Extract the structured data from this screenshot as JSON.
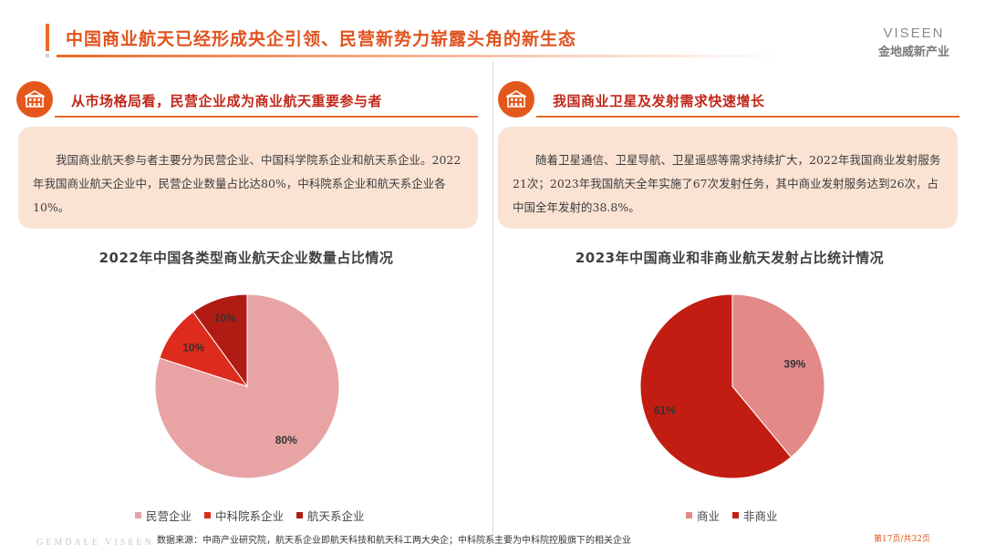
{
  "header": {
    "title": "中国商业航天已经形成央企引领、民营新势力崭露头角的新生态",
    "logo_top": "VISEEN",
    "logo_bottom": "金地威新产业"
  },
  "left": {
    "heading": "从市场格局看，民营企业成为商业航天重要参与者",
    "body": "我国商业航天参与者主要分为民营企业、中国科学院系企业和航天系企业。2022年我国商业航天企业中，民营企业数量占比达80%，中科院系企业和航天系企业各10%。"
  },
  "right": {
    "heading": "我国商业卫星及发射需求快速增长",
    "body": "随着卫星通信、卫星导航、卫星遥感等需求持续扩大，2022年我国商业发射服务21次；2023年我国航天全年实施了67次发射任务，其中商业发射服务达到26次，占中国全年发射的38.8%。"
  },
  "chart_data": [
    {
      "type": "pie",
      "title": "2022年中国各类型商业航天企业数量占比情况",
      "categories": [
        "民营企业",
        "中科院系企业",
        "航天系企业"
      ],
      "values": [
        80,
        10,
        10
      ],
      "labels": [
        "80%",
        "10%",
        "10%"
      ],
      "colors": [
        "#e8a3a5",
        "#dd2b1d",
        "#b01c14"
      ],
      "legend_position": "bottom"
    },
    {
      "type": "pie",
      "title": "2023年中国商业和非商业航天发射占比统计情况",
      "categories": [
        "商业",
        "非商业"
      ],
      "values": [
        39,
        61
      ],
      "labels": [
        "39%",
        "61%"
      ],
      "colors": [
        "#e38a88",
        "#c21d12"
      ],
      "legend_position": "bottom"
    }
  ],
  "footer": {
    "watermark": "GEMDALE VISEEN",
    "source": "数据来源：中商产业研究院，航天系企业即航天科技和航天科工两大央企；中科院系主要为中科院控股旗下的相关企业",
    "page": "第17页/共32页"
  },
  "icons": {
    "section": "building-icon"
  }
}
